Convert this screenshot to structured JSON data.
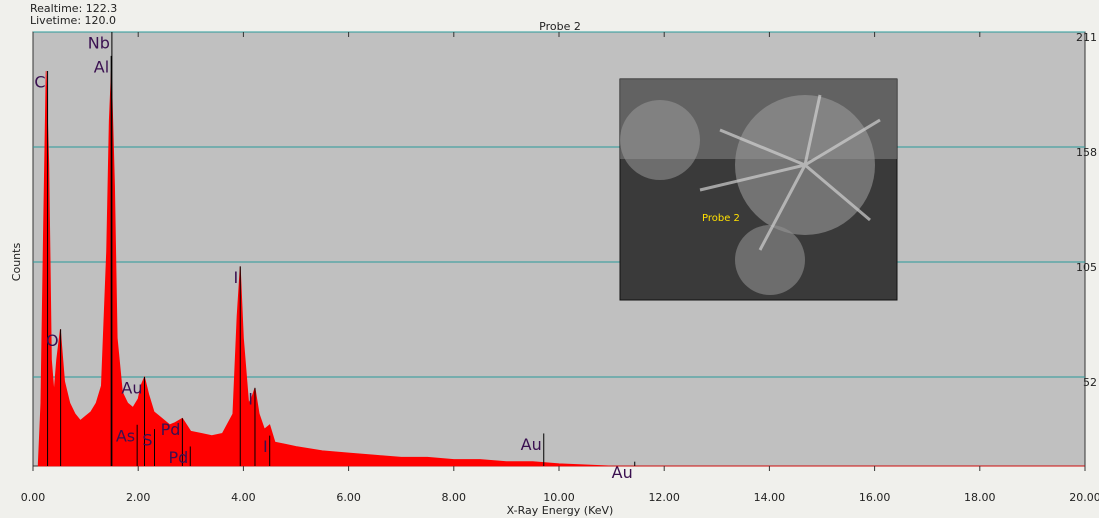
{
  "chart_data": {
    "type": "area",
    "title": "Probe 2",
    "info": [
      "Realtime: 122.3",
      "Livetime: 120.0"
    ],
    "xlabel": "X-Ray Energy (KeV)",
    "ylabel": "Counts",
    "inset_label": "Probe 2",
    "color": "#ff0000",
    "grid": true,
    "xlim": [
      0,
      20
    ],
    "ylim": [
      11,
      211
    ],
    "xticks": [
      {
        "value": 0,
        "label": "0.00"
      },
      {
        "value": 2,
        "label": "2.00"
      },
      {
        "value": 4,
        "label": "4.00"
      },
      {
        "value": 6,
        "label": "6.00"
      },
      {
        "value": 8,
        "label": "8.00"
      },
      {
        "value": 10,
        "label": "10.00"
      },
      {
        "value": 12,
        "label": "12.00"
      },
      {
        "value": 14,
        "label": "14.00"
      },
      {
        "value": 16,
        "label": "16.00"
      },
      {
        "value": 18,
        "label": "18.00"
      },
      {
        "value": 20,
        "label": "20.00"
      }
    ],
    "yticks": [
      52,
      105,
      158,
      211
    ],
    "x": [
      0.1,
      0.15,
      0.2,
      0.25,
      0.3,
      0.35,
      0.4,
      0.45,
      0.52,
      0.6,
      0.7,
      0.8,
      0.9,
      1.0,
      1.1,
      1.2,
      1.3,
      1.4,
      1.45,
      1.49,
      1.55,
      1.6,
      1.7,
      1.8,
      1.9,
      2.0,
      2.05,
      2.12,
      2.2,
      2.3,
      2.4,
      2.5,
      2.6,
      2.7,
      2.84,
      3.0,
      3.2,
      3.4,
      3.6,
      3.8,
      3.88,
      3.94,
      4.0,
      4.1,
      4.15,
      4.22,
      4.3,
      4.4,
      4.5,
      4.6,
      4.8,
      5.0,
      5.5,
      6.0,
      6.5,
      7.0,
      7.5,
      8.0,
      8.5,
      9.0,
      9.5,
      10.0,
      11.0,
      12.0,
      20.0
    ],
    "values": [
      12,
      40,
      120,
      193,
      150,
      60,
      45,
      60,
      74,
      50,
      40,
      35,
      32,
      34,
      36,
      40,
      48,
      110,
      170,
      193,
      140,
      70,
      45,
      40,
      38,
      42,
      48,
      52,
      44,
      36,
      34,
      32,
      30,
      31,
      33,
      27,
      26,
      25,
      26,
      35,
      80,
      103,
      70,
      40,
      42,
      47,
      35,
      28,
      30,
      22,
      21,
      20,
      18,
      17,
      16,
      15,
      15,
      14,
      14,
      13,
      13,
      12,
      11,
      11,
      11
    ],
    "annotations": [
      {
        "text": "C",
        "x": 0.277,
        "y": 193
      },
      {
        "text": "O",
        "x": 0.525,
        "y": 74
      },
      {
        "text": "Al",
        "x": 1.486,
        "y": 200
      },
      {
        "text": "Nb",
        "x": 1.5,
        "y": 211
      },
      {
        "text": "Au",
        "x": 2.12,
        "y": 52
      },
      {
        "text": "As",
        "x": 1.98,
        "y": 30
      },
      {
        "text": "S",
        "x": 2.31,
        "y": 28
      },
      {
        "text": "Pd",
        "x": 2.84,
        "y": 33
      },
      {
        "text": "Pd",
        "x": 2.99,
        "y": 20
      },
      {
        "text": "I",
        "x": 3.94,
        "y": 103
      },
      {
        "text": "I",
        "x": 4.22,
        "y": 47
      },
      {
        "text": "I",
        "x": 4.5,
        "y": 25
      },
      {
        "text": "Au",
        "x": 9.71,
        "y": 26
      },
      {
        "text": "Au",
        "x": 11.44,
        "y": 13
      }
    ]
  }
}
